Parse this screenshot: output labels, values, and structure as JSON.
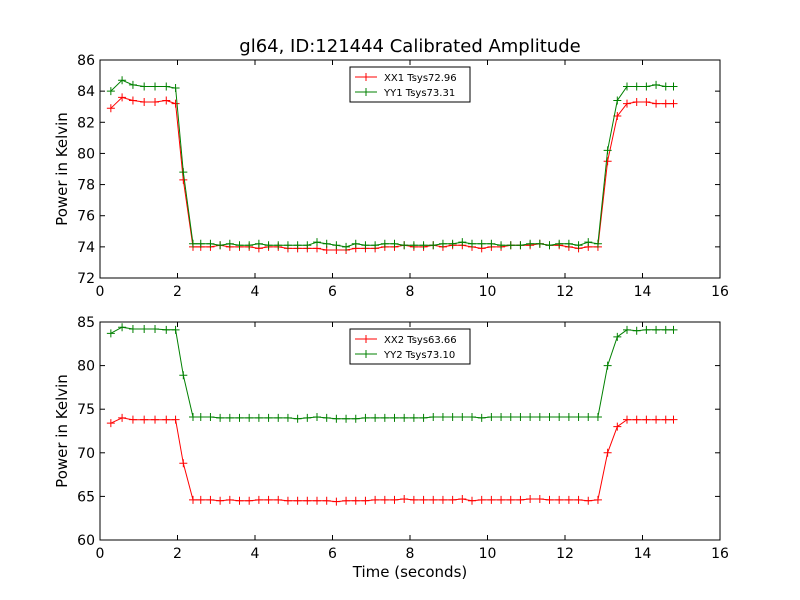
{
  "title": "gl64, ID:121444 Calibrated Amplitude",
  "chart_data": [
    {
      "type": "line",
      "ylabel": "Power in Kelvin",
      "xlabel": "",
      "xlim": [
        0,
        16
      ],
      "ylim": [
        72,
        86
      ],
      "xticks": [
        "0",
        "2",
        "4",
        "6",
        "8",
        "10",
        "12",
        "14",
        "16"
      ],
      "yticks": [
        "72",
        "74",
        "76",
        "78",
        "80",
        "82",
        "84",
        "86"
      ],
      "legend_position": "top-center",
      "x": [
        0.28,
        0.57,
        0.85,
        1.14,
        1.42,
        1.71,
        1.95,
        2.15,
        2.4,
        2.6,
        2.85,
        3.1,
        3.35,
        3.6,
        3.85,
        4.1,
        4.35,
        4.6,
        4.85,
        5.1,
        5.35,
        5.6,
        5.85,
        6.1,
        6.35,
        6.6,
        6.85,
        7.1,
        7.35,
        7.6,
        7.85,
        8.1,
        8.35,
        8.6,
        8.85,
        9.1,
        9.35,
        9.6,
        9.85,
        10.1,
        10.35,
        10.6,
        10.85,
        11.1,
        11.35,
        11.6,
        11.85,
        12.1,
        12.35,
        12.6,
        12.85,
        13.1,
        13.35,
        13.6,
        13.85,
        14.1,
        14.35,
        14.6,
        14.8
      ],
      "series": [
        {
          "name": "XX1 Tsys72.96",
          "color": "#ff0000",
          "values": [
            82.9,
            83.6,
            83.4,
            83.3,
            83.3,
            83.4,
            83.2,
            78.3,
            74.0,
            74.0,
            74.0,
            74.1,
            74.0,
            74.0,
            74.0,
            73.9,
            74.0,
            74.0,
            73.9,
            73.9,
            73.9,
            73.9,
            73.8,
            73.8,
            73.8,
            73.9,
            73.9,
            73.9,
            74.0,
            74.0,
            74.1,
            74.0,
            74.0,
            74.1,
            74.0,
            74.1,
            74.1,
            74.0,
            73.9,
            74.0,
            74.0,
            74.1,
            74.1,
            74.1,
            74.2,
            74.1,
            74.1,
            74.0,
            73.9,
            74.0,
            74.0,
            79.5,
            82.4,
            83.2,
            83.3,
            83.3,
            83.2,
            83.2,
            83.2
          ]
        },
        {
          "name": "YY1 Tsys73.31",
          "color": "#008000",
          "values": [
            84.0,
            84.7,
            84.4,
            84.3,
            84.3,
            84.3,
            84.2,
            78.8,
            74.2,
            74.2,
            74.2,
            74.1,
            74.2,
            74.1,
            74.1,
            74.2,
            74.1,
            74.1,
            74.1,
            74.1,
            74.1,
            74.3,
            74.2,
            74.1,
            74.0,
            74.2,
            74.1,
            74.1,
            74.2,
            74.2,
            74.1,
            74.1,
            74.1,
            74.1,
            74.2,
            74.2,
            74.3,
            74.2,
            74.2,
            74.2,
            74.1,
            74.1,
            74.1,
            74.2,
            74.2,
            74.1,
            74.2,
            74.2,
            74.1,
            74.3,
            74.2,
            80.2,
            83.4,
            84.3,
            84.3,
            84.3,
            84.4,
            84.3,
            84.3
          ]
        }
      ]
    },
    {
      "type": "line",
      "ylabel": "Power in Kelvin",
      "xlabel": "Time (seconds)",
      "xlim": [
        0,
        16
      ],
      "ylim": [
        60,
        85
      ],
      "xticks": [
        "0",
        "2",
        "4",
        "6",
        "8",
        "10",
        "12",
        "14",
        "16"
      ],
      "yticks": [
        "60",
        "65",
        "70",
        "75",
        "80",
        "85"
      ],
      "legend_position": "top-center",
      "x": [
        0.28,
        0.57,
        0.85,
        1.14,
        1.42,
        1.71,
        1.95,
        2.15,
        2.4,
        2.6,
        2.85,
        3.1,
        3.35,
        3.6,
        3.85,
        4.1,
        4.35,
        4.6,
        4.85,
        5.1,
        5.35,
        5.6,
        5.85,
        6.1,
        6.35,
        6.6,
        6.85,
        7.1,
        7.35,
        7.6,
        7.85,
        8.1,
        8.35,
        8.6,
        8.85,
        9.1,
        9.35,
        9.6,
        9.85,
        10.1,
        10.35,
        10.6,
        10.85,
        11.1,
        11.35,
        11.6,
        11.85,
        12.1,
        12.35,
        12.6,
        12.85,
        13.1,
        13.35,
        13.6,
        13.85,
        14.1,
        14.35,
        14.6,
        14.8
      ],
      "series": [
        {
          "name": "XX2 Tsys63.66",
          "color": "#ff0000",
          "values": [
            73.4,
            74.0,
            73.8,
            73.8,
            73.8,
            73.8,
            73.8,
            68.8,
            64.6,
            64.6,
            64.6,
            64.5,
            64.6,
            64.5,
            64.5,
            64.6,
            64.6,
            64.6,
            64.5,
            64.5,
            64.5,
            64.5,
            64.5,
            64.4,
            64.5,
            64.5,
            64.5,
            64.6,
            64.6,
            64.6,
            64.7,
            64.6,
            64.6,
            64.6,
            64.6,
            64.6,
            64.7,
            64.5,
            64.6,
            64.6,
            64.6,
            64.6,
            64.6,
            64.7,
            64.7,
            64.6,
            64.6,
            64.6,
            64.6,
            64.5,
            64.6,
            70.0,
            73.0,
            73.8,
            73.8,
            73.8,
            73.8,
            73.8,
            73.8
          ]
        },
        {
          "name": "YY2 Tsys73.10",
          "color": "#008000",
          "values": [
            83.7,
            84.4,
            84.2,
            84.2,
            84.2,
            84.1,
            84.1,
            78.9,
            74.1,
            74.1,
            74.1,
            74.0,
            74.0,
            74.0,
            74.0,
            74.0,
            74.0,
            74.0,
            74.0,
            73.9,
            74.0,
            74.1,
            74.0,
            73.9,
            73.9,
            73.9,
            74.0,
            74.0,
            74.0,
            74.0,
            74.0,
            74.0,
            74.0,
            74.1,
            74.1,
            74.1,
            74.1,
            74.1,
            74.0,
            74.1,
            74.1,
            74.1,
            74.1,
            74.1,
            74.1,
            74.1,
            74.1,
            74.1,
            74.1,
            74.1,
            74.1,
            80.0,
            83.3,
            84.1,
            84.0,
            84.1,
            84.1,
            84.1,
            84.1
          ]
        }
      ]
    }
  ]
}
